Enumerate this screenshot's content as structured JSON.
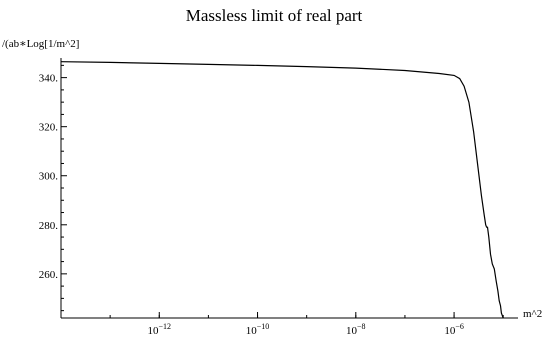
{
  "chart_data": {
    "type": "line",
    "title": "Massless limit of real part",
    "ylabel": "/(ab∗Log[1/m^2]",
    "xlabel": "m^2",
    "xscale": "log",
    "xlim": [
      1e-14,
      2e-05
    ],
    "ylim": [
      242,
      348
    ],
    "x_ticks": [
      {
        "value": 1e-12,
        "base": "10",
        "exp": "−12"
      },
      {
        "value": 1e-10,
        "base": "10",
        "exp": "−10"
      },
      {
        "value": 1e-08,
        "base": "10",
        "exp": "−8"
      },
      {
        "value": 1e-06,
        "base": "10",
        "exp": "−6"
      }
    ],
    "y_ticks": [
      {
        "value": 260,
        "label": "260."
      },
      {
        "value": 280,
        "label": "280."
      },
      {
        "value": 300,
        "label": "300."
      },
      {
        "value": 320,
        "label": "320."
      },
      {
        "value": 340,
        "label": "340."
      }
    ],
    "series": [
      {
        "x": [
          1e-14,
          1e-13,
          1e-12,
          1e-11,
          1e-10,
          1e-09,
          1e-08,
          1e-07,
          5e-07,
          1e-06,
          1.3e-06,
          1.6e-06,
          2e-06,
          2.5e-06,
          3e-06,
          3.6e-06,
          4.1e-06,
          4.4e-06,
          4.6e-06,
          4.8e-06,
          5.1e-06,
          5.5e-06,
          6e-06,
          6.6e-06,
          7.2e-06,
          7.8e-06,
          8.3e-06,
          8.8e-06,
          9.2e-06,
          9.6e-06,
          1e-05
        ],
        "y": [
          346.5,
          346.2,
          345.8,
          345.4,
          345.0,
          344.5,
          343.9,
          342.9,
          341.7,
          340.9,
          339.6,
          336.5,
          330.0,
          318.0,
          305.0,
          292.0,
          284.0,
          280.0,
          279.0,
          279.0,
          275.0,
          268.0,
          264.0,
          262.0,
          257.0,
          253.0,
          249.0,
          247.0,
          244.0,
          243.0,
          242.0
        ]
      }
    ]
  }
}
